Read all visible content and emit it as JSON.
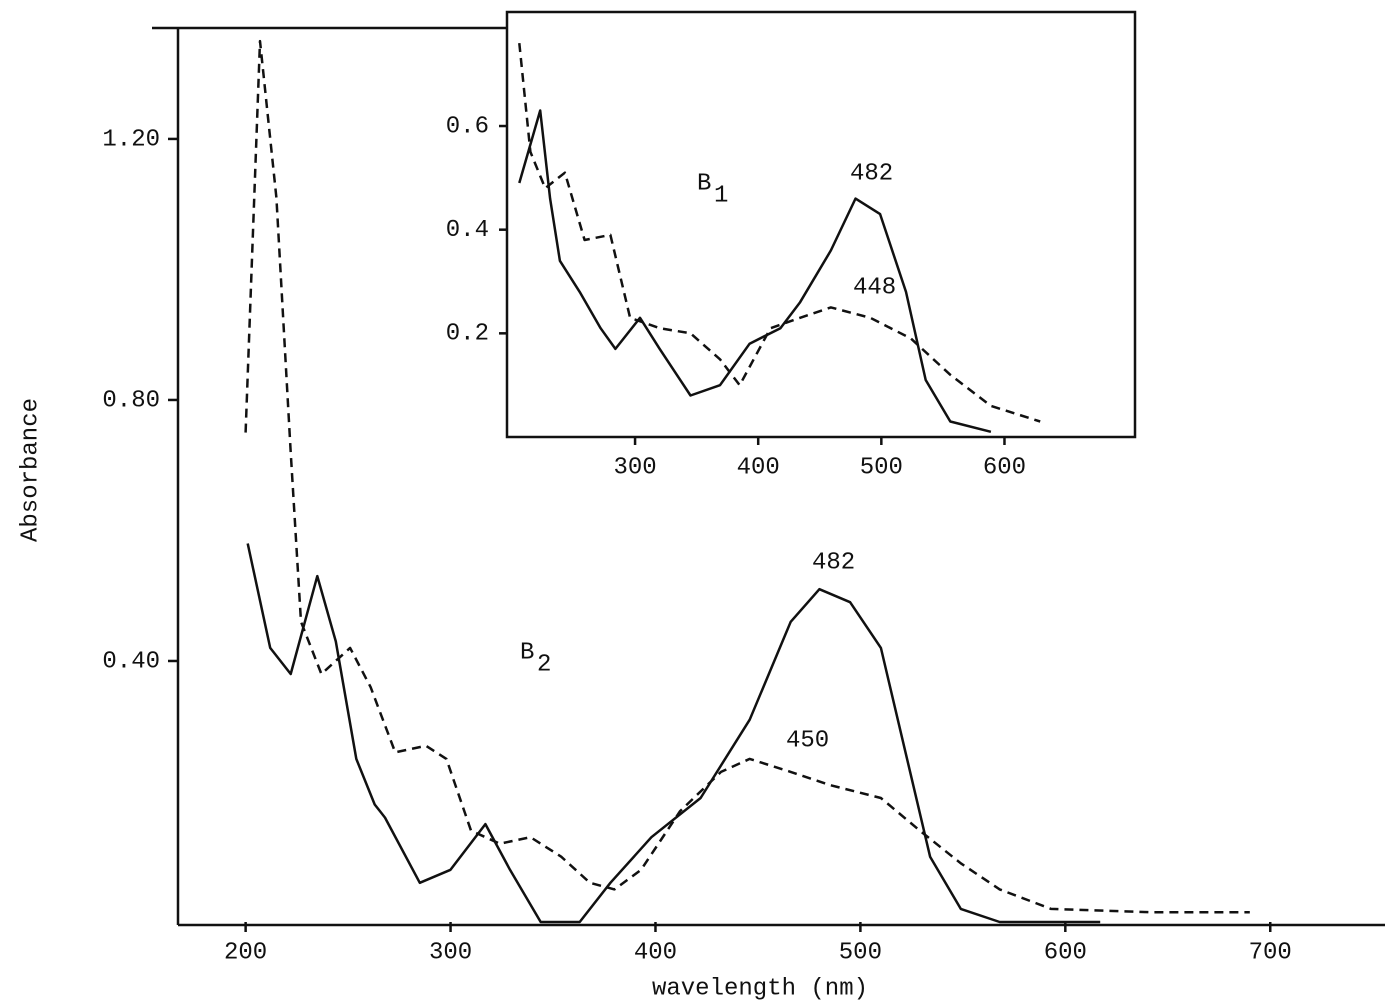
{
  "chart_data": [
    {
      "type": "line",
      "x_label": "wavelength (nm)",
      "y_label": "Absorbance",
      "xlim": [
        167,
        756
      ],
      "ylim": [
        0,
        1.37
      ],
      "xticks": [
        200,
        300,
        400,
        500,
        600,
        700
      ],
      "yticks": [
        {
          "value": 0.4,
          "label": "0.40"
        },
        {
          "value": 0.8,
          "label": "0.80"
        },
        {
          "value": 1.2,
          "label": "1.20"
        }
      ],
      "annotations": [
        {
          "text": "482"
        },
        {
          "text": "450"
        },
        {
          "text": "B",
          "subscript": "2"
        }
      ],
      "series": [
        {
          "color": "#111111",
          "dash": "solid",
          "x": [
            201,
            212,
            222,
            235,
            244,
            254,
            263,
            268,
            285,
            300,
            317,
            329,
            344,
            363,
            378,
            398,
            422,
            446,
            466,
            480,
            495,
            510,
            522,
            534,
            549,
            568,
            617
          ],
          "values": [
            0.58,
            0.42,
            0.38,
            0.53,
            0.43,
            0.25,
            0.18,
            0.16,
            0.06,
            0.08,
            0.15,
            0.08,
            0.0,
            0.0,
            0.06,
            0.13,
            0.19,
            0.31,
            0.46,
            0.51,
            0.49,
            0.42,
            0.26,
            0.1,
            0.02,
            0.0,
            0.0
          ]
        },
        {
          "color": "#111111",
          "dash": "dashed",
          "x": [
            200,
            207,
            215,
            222,
            227,
            237,
            251,
            261,
            273,
            288,
            298,
            310,
            324,
            339,
            354,
            368,
            380,
            393,
            412,
            432,
            446,
            466,
            485,
            510,
            529,
            549,
            568,
            593,
            641,
            690
          ],
          "values": [
            0.75,
            1.35,
            1.11,
            0.72,
            0.46,
            0.38,
            0.42,
            0.36,
            0.26,
            0.27,
            0.25,
            0.14,
            0.12,
            0.13,
            0.1,
            0.06,
            0.05,
            0.08,
            0.17,
            0.23,
            0.25,
            0.23,
            0.21,
            0.19,
            0.14,
            0.09,
            0.05,
            0.02,
            0.015,
            0.015
          ]
        }
      ]
    },
    {
      "type": "line",
      "xlim": [
        196,
        706
      ],
      "ylim": [
        0,
        0.82
      ],
      "xticks": [
        300,
        400,
        500,
        600
      ],
      "yticks": [
        0.2,
        0.4,
        0.6
      ],
      "annotations": [
        {
          "text": "482"
        },
        {
          "text": "448"
        },
        {
          "text": "B",
          "subscript": "1"
        }
      ],
      "series": [
        {
          "color": "#111111",
          "dash": "solid",
          "x": [
            206,
            223,
            231,
            239,
            255,
            272,
            284,
            304,
            320,
            345,
            369,
            393,
            418,
            434,
            459,
            479,
            499,
            520,
            536,
            556,
            589
          ],
          "values": [
            0.49,
            0.63,
            0.46,
            0.34,
            0.28,
            0.21,
            0.17,
            0.23,
            0.17,
            0.08,
            0.1,
            0.18,
            0.21,
            0.26,
            0.36,
            0.46,
            0.43,
            0.28,
            0.11,
            0.03,
            0.01
          ]
        },
        {
          "color": "#111111",
          "dash": "dashed",
          "x": [
            206,
            215,
            227,
            243,
            259,
            280,
            296,
            320,
            345,
            369,
            385,
            410,
            434,
            459,
            491,
            524,
            556,
            589,
            629
          ],
          "values": [
            0.76,
            0.55,
            0.48,
            0.51,
            0.38,
            0.39,
            0.23,
            0.21,
            0.2,
            0.15,
            0.1,
            0.21,
            0.23,
            0.25,
            0.23,
            0.19,
            0.12,
            0.06,
            0.03
          ]
        }
      ]
    }
  ]
}
